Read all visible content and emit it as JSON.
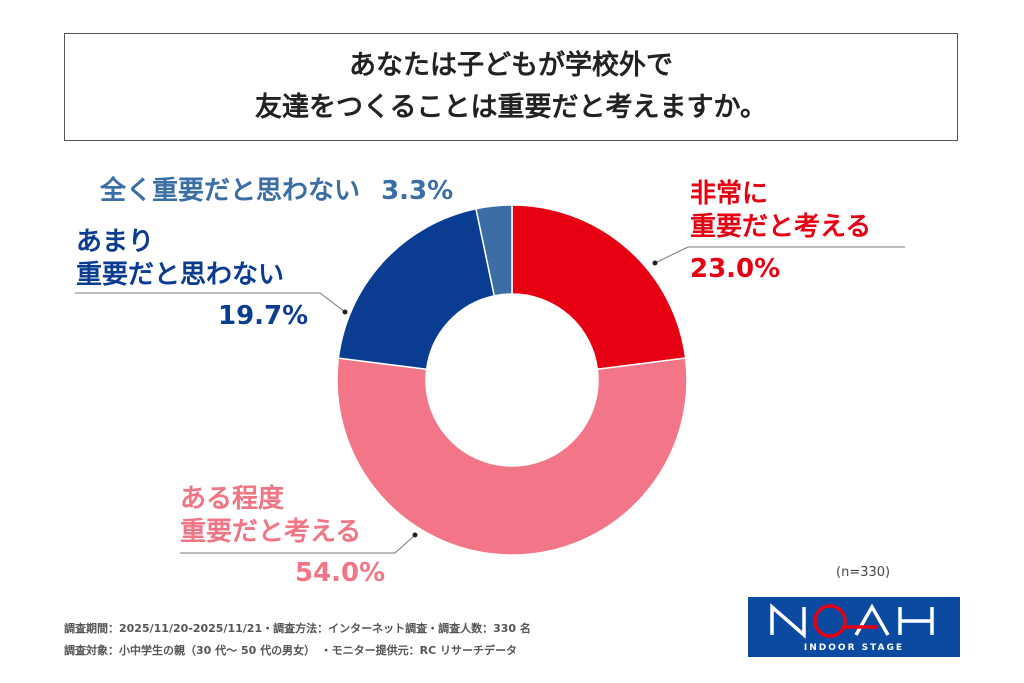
{
  "title_lines": [
    "あなたは子どもが学校外で",
    "友達をつくることは重要だと考えますか。"
  ],
  "chart_data": {
    "type": "pie",
    "donut": true,
    "categories": [
      "非常に重要だと考える",
      "ある程度重要だと考える",
      "あまり重要だと思わない",
      "全く重要だと思わない"
    ],
    "values": [
      23.0,
      54.0,
      19.7,
      3.3
    ],
    "colors": [
      "#e60012",
      "#f27688",
      "#0a3d91",
      "#3a6ea5"
    ],
    "value_labels": [
      "23.0%",
      "54.0%",
      "19.7%",
      "3.3%"
    ],
    "label_lines": [
      [
        "非常に",
        "重要だと考える"
      ],
      [
        "ある程度",
        "重要だと考える"
      ],
      [
        "あまり",
        "重要だと思わない"
      ],
      [
        "全く重要だと思わない"
      ]
    ],
    "start": "top",
    "direction": "clockwise"
  },
  "sample": "(n=330)",
  "footer": [
    "調査期間：2025/11/20-2025/11/21・調査方法：インターネット調査・調査人数：330 名",
    "調査対象：小中学生の親（30 代～ 50 代の男女）　・モニター提供元：RC リサーチデータ"
  ],
  "logo": {
    "text": "NOAH",
    "sub": "INDOOR STAGE"
  }
}
